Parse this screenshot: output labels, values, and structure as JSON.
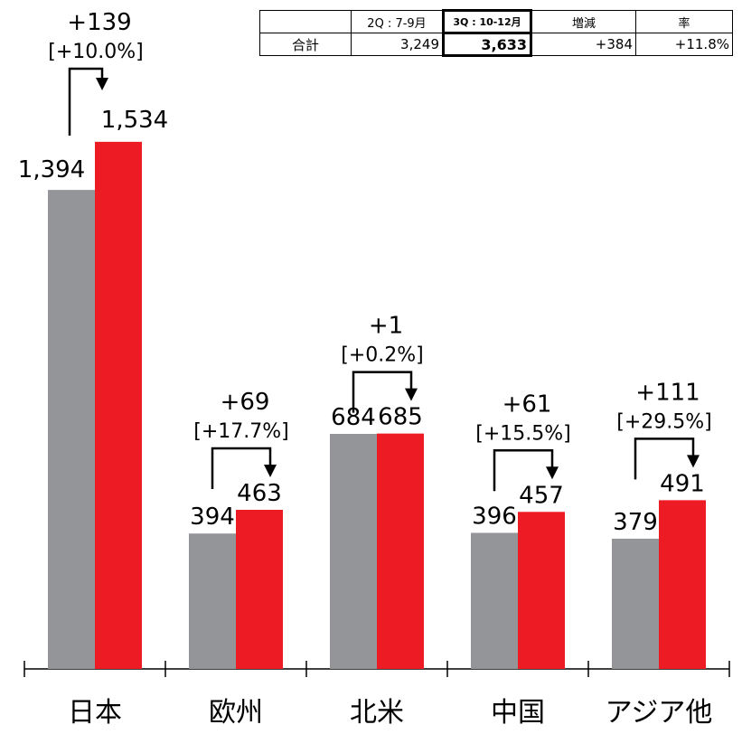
{
  "summary_table": {
    "headers": [
      "",
      "2Q : 7-9月",
      "3Q : 10-12月",
      "増減",
      "率"
    ],
    "row_label": "合計",
    "values": [
      "3,249",
      "3,633",
      "+384",
      "+11.8%"
    ]
  },
  "chart_data": {
    "type": "bar",
    "categories": [
      "日本",
      "欧州",
      "北米",
      "中国",
      "アジア他"
    ],
    "series": [
      {
        "values": [
          1394,
          394,
          684,
          396,
          379
        ],
        "color": "#939598"
      },
      {
        "values": [
          1534,
          463,
          685,
          457,
          491
        ],
        "color": "#ed1c24"
      }
    ],
    "value_labels": [
      [
        "1,394",
        "394",
        "684",
        "396",
        "379"
      ],
      [
        "1,534",
        "463",
        "685",
        "457",
        "491"
      ]
    ],
    "change_labels": [
      "+139",
      "+69",
      "+1",
      "+61",
      "+111"
    ],
    "pct_labels": [
      "[+10.0%]",
      "[+17.7%]",
      "[+0.2%]",
      "[+15.5%]",
      "[+29.5%]"
    ],
    "ylim": [
      0,
      1610
    ],
    "grid": false
  }
}
